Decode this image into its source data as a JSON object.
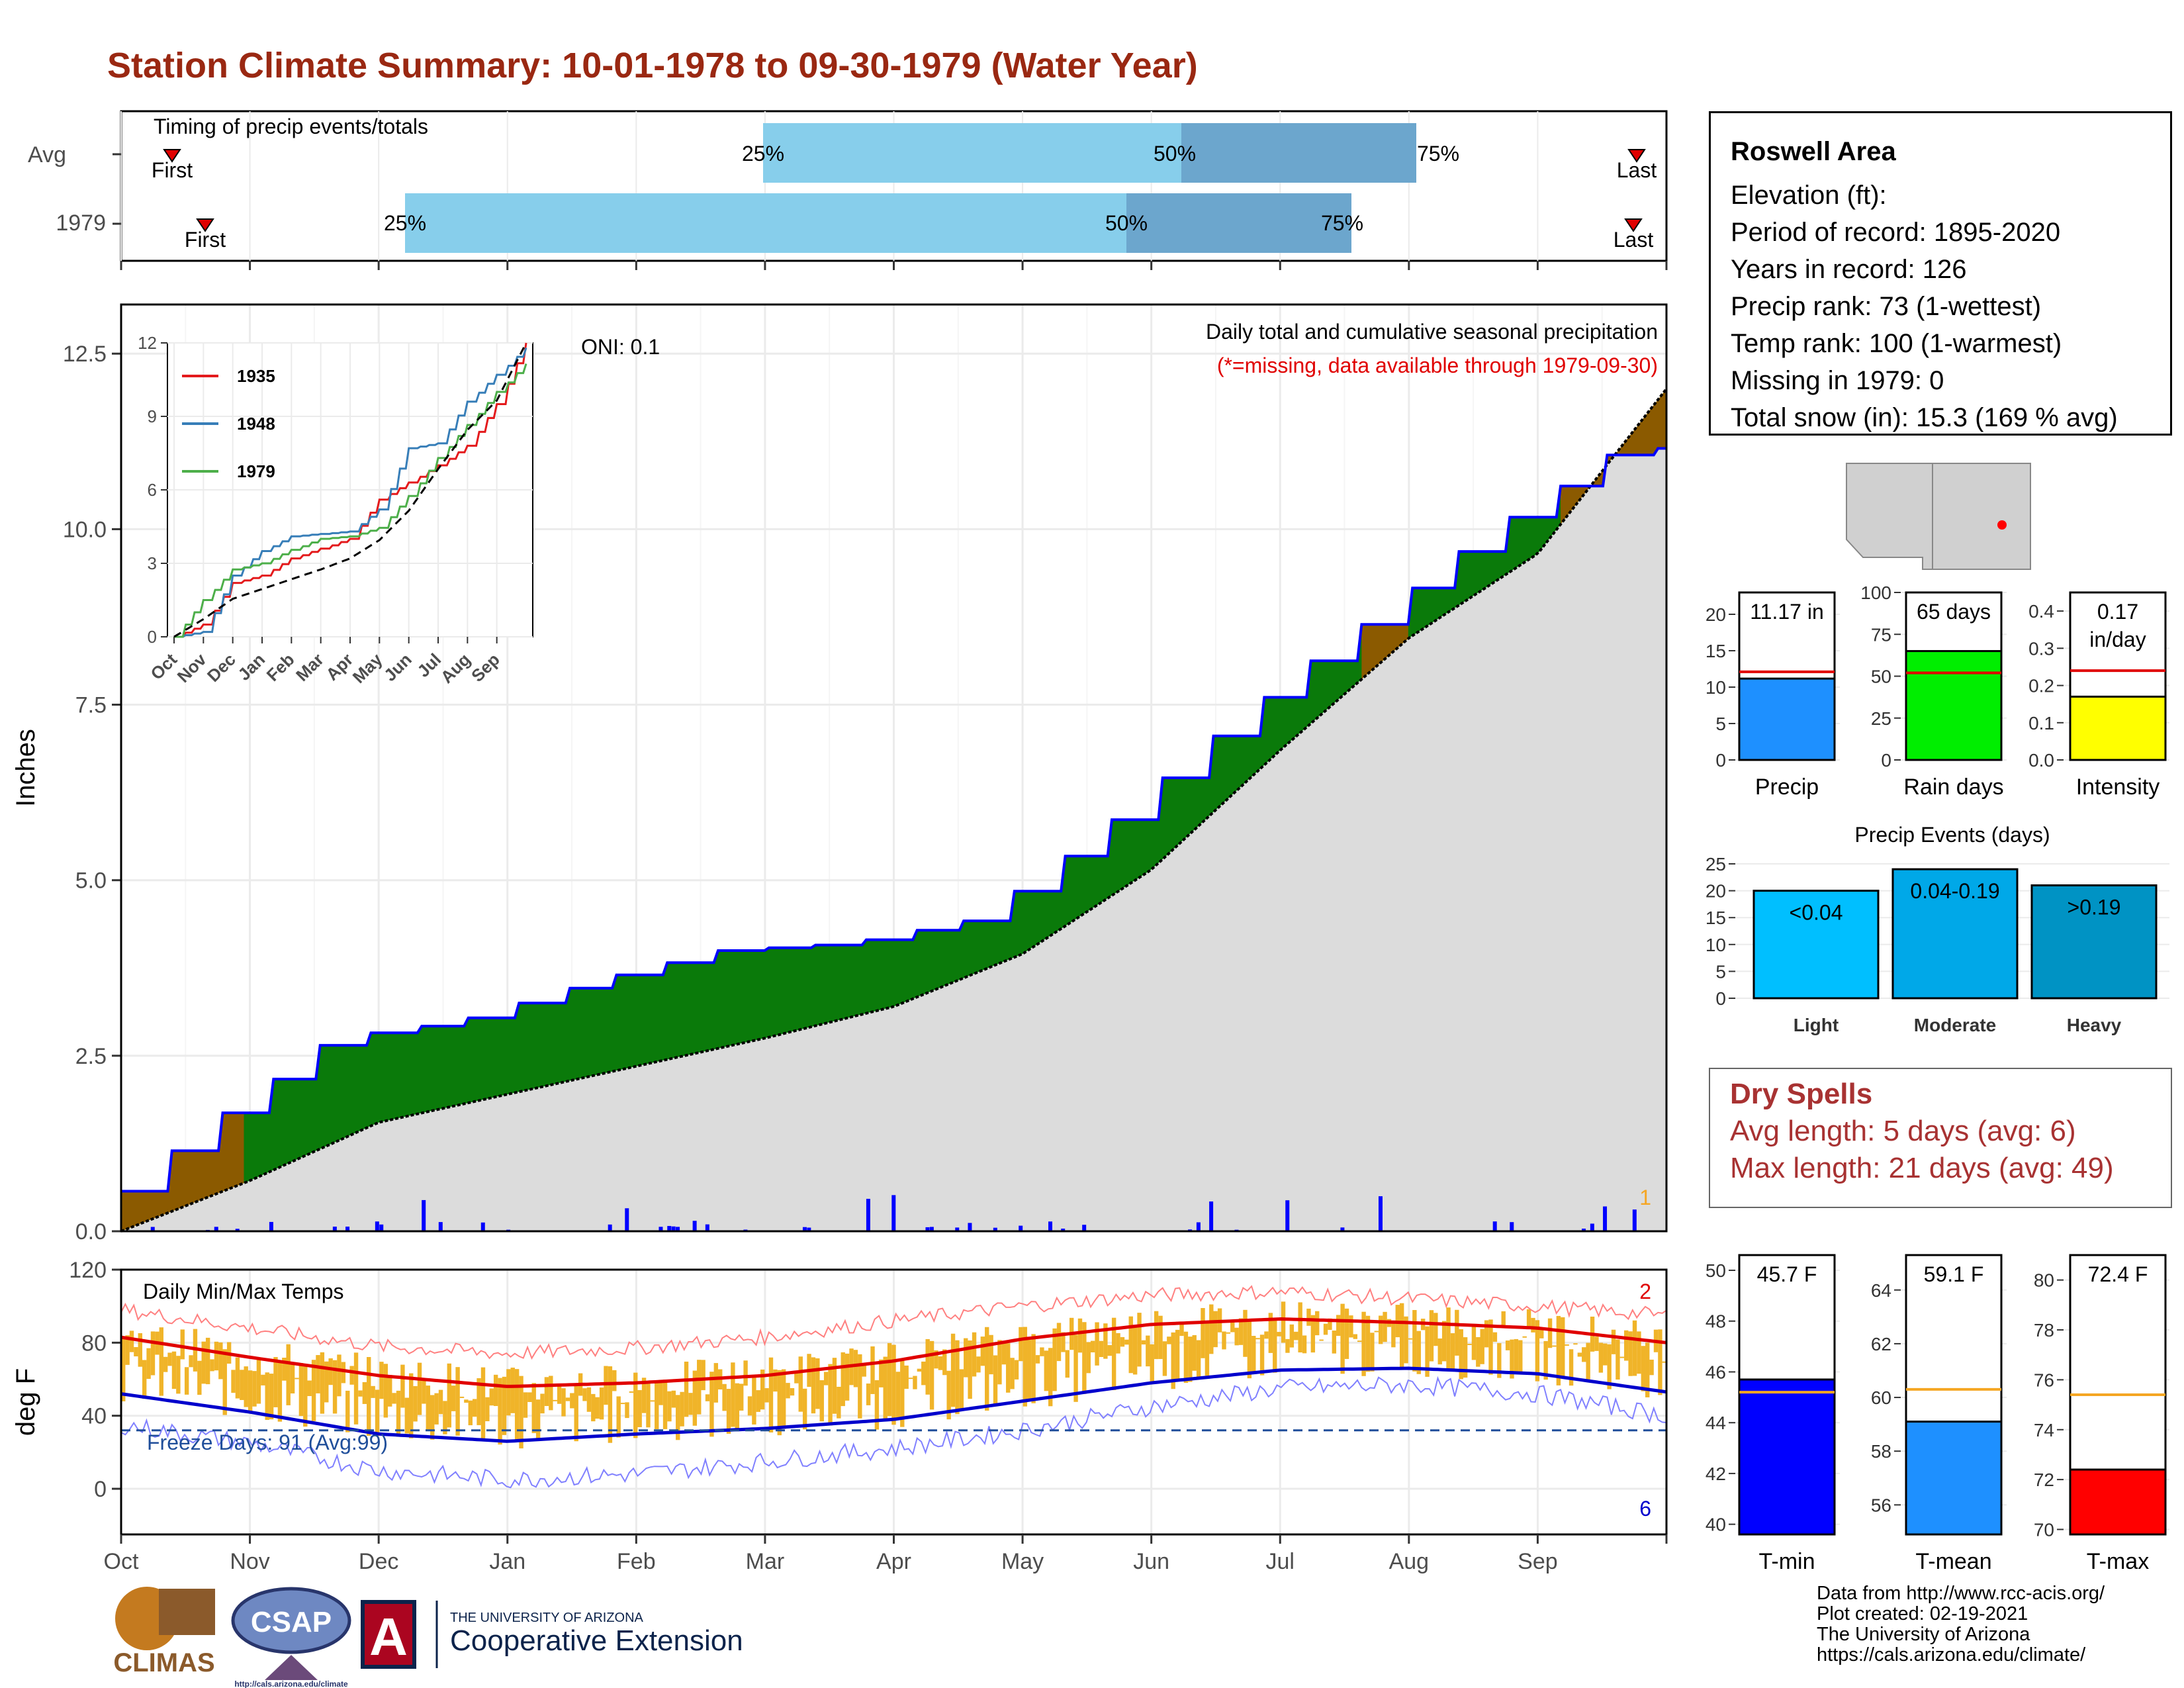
{
  "title": "Station Climate Summary: 10-01-1978 to 09-30-1979 (Water Year)",
  "timing": {
    "label": "Timing of precip events/totals",
    "rows": [
      "Avg",
      "1979"
    ],
    "pct_labels": [
      "25%",
      "50%",
      "75%"
    ],
    "first_label": "First",
    "last_label": "Last"
  },
  "main_panel": {
    "caption": "Daily total and cumulative seasonal precipitation",
    "note": "(*=missing, data available through 1979-09-30)",
    "oni": "ONI: 0.1",
    "ylabel": "Inches",
    "yticks": [
      "0.0",
      "2.5",
      "5.0",
      "7.5",
      "10.0",
      "12.5"
    ],
    "corner_count": "1"
  },
  "inset": {
    "yticks": [
      "0",
      "3",
      "6",
      "9",
      "12"
    ],
    "xticks": [
      "Oct",
      "Nov",
      "Dec",
      "Jan",
      "Feb",
      "Mar",
      "Apr",
      "May",
      "Jun",
      "Jul",
      "Aug",
      "Sep"
    ],
    "legend": [
      "1935",
      "1948",
      "1979"
    ],
    "colors": {
      "1935": "#e41a1c",
      "1948": "#377eb8",
      "1979": "#4daf4a"
    }
  },
  "temp_panel": {
    "label": "Daily Min/Max Temps",
    "ylabel": "deg F",
    "yticks": [
      "120",
      "80",
      "40",
      "0"
    ],
    "freeze": "Freeze Days: 91 (Avg:99)",
    "count_hot": "2",
    "count_cold": "6"
  },
  "x_months": [
    "Oct",
    "Nov",
    "Dec",
    "Jan",
    "Feb",
    "Mar",
    "Apr",
    "May",
    "Jun",
    "Jul",
    "Aug",
    "Sep"
  ],
  "station": {
    "name": "Roswell Area",
    "lines": [
      "Elevation (ft):",
      "Period of record: 1895-2020",
      "Years in record: 126",
      "Precip rank: 73 (1-wettest)",
      "Temp rank: 100 (1-warmest)",
      "Missing in 1979: 0",
      "Total snow (in): 15.3 (169 % avg)"
    ]
  },
  "mini_bars": {
    "precip": {
      "value_label": "11.17 in",
      "label": "Precip",
      "yticks": [
        "0",
        "5",
        "10",
        "15",
        "20"
      ]
    },
    "rain_days": {
      "value_label": "65 days",
      "label": "Rain days",
      "yticks": [
        "0",
        "25",
        "50",
        "75",
        "100"
      ]
    },
    "intensity": {
      "value_label_1": "0.17",
      "value_label_2": "in/day",
      "label": "Intensity",
      "yticks": [
        "0.0",
        "0.1",
        "0.2",
        "0.3",
        "0.4"
      ]
    }
  },
  "precip_events": {
    "title": "Precip Events (days)",
    "yticks": [
      "0",
      "5",
      "10",
      "15",
      "20",
      "25"
    ],
    "bars": [
      {
        "label": "Light",
        "range": "<0.04"
      },
      {
        "label": "Moderate",
        "range": "0.04-0.19"
      },
      {
        "label": "Heavy",
        "range": ">0.19"
      }
    ]
  },
  "dry_spells": {
    "title": "Dry Spells",
    "avg": "Avg length: 5 days (avg: 6)",
    "max": "Max length: 21 days (avg: 49)"
  },
  "temp_bars": {
    "tmin": {
      "value_label": "45.7 F",
      "label": "T-min",
      "yticks": [
        "40",
        "42",
        "44",
        "46",
        "48",
        "50"
      ]
    },
    "tmean": {
      "value_label": "59.1 F",
      "label": "T-mean",
      "yticks": [
        "56",
        "58",
        "60",
        "62",
        "64"
      ]
    },
    "tmax": {
      "value_label": "72.4 F",
      "label": "T-max",
      "yticks": [
        "70",
        "72",
        "74",
        "76",
        "78",
        "80"
      ]
    }
  },
  "footer": [
    "Data from http://www.rcc-acis.org/",
    "Plot created: 02-19-2021",
    "The University of Arizona",
    "https://cals.arizona.edu/climate/"
  ],
  "logos": {
    "climas": "CLIMAS",
    "csap": "CSAP",
    "csap_url": "http://cals.arizona.edu/climate",
    "ua_small": "THE UNIVERSITY OF ARIZONA",
    "ua_big": "Cooperative Extension"
  },
  "chart_data": [
    {
      "type": "area",
      "title": "Daily total and cumulative seasonal precipitation",
      "ylabel": "Inches",
      "ylim": [
        0,
        13.2
      ],
      "x": [
        "Oct",
        "Nov",
        "Dec",
        "Jan",
        "Feb",
        "Mar",
        "Apr",
        "May",
        "Jun",
        "Jul",
        "Aug",
        "Sep",
        "end"
      ],
      "series": [
        {
          "values": [
            0.0,
            1.5,
            2.75,
            3.0,
            3.55,
            4.0,
            4.1,
            4.45,
            5.75,
            7.3,
            8.65,
            10.0,
            11.15
          ]
        },
        {
          "values": [
            0.0,
            0.72,
            1.55,
            1.95,
            2.35,
            2.75,
            3.2,
            3.95,
            5.15,
            6.85,
            8.45,
            9.65,
            12.0
          ]
        }
      ]
    },
    {
      "type": "line",
      "ylim": [
        0,
        12
      ],
      "x": [
        "Oct",
        "Nov",
        "Dec",
        "Jan",
        "Feb",
        "Mar",
        "Apr",
        "May",
        "Jun",
        "Jul",
        "Aug",
        "Sep",
        "end"
      ],
      "series": [
        {
          "name": "1935",
          "values": [
            0,
            0.5,
            2.2,
            2.5,
            3.2,
            3.6,
            4.0,
            5.6,
            6.3,
            7.0,
            7.8,
            9.5,
            12.0
          ]
        },
        {
          "name": "1948",
          "values": [
            0,
            0.2,
            2.5,
            3.5,
            4.1,
            4.2,
            4.3,
            5.2,
            7.7,
            7.9,
            9.6,
            10.7,
            11.8
          ]
        },
        {
          "name": "1979",
          "values": [
            0,
            1.5,
            2.75,
            3.0,
            3.55,
            4.0,
            4.1,
            4.45,
            5.75,
            7.3,
            8.65,
            10.0,
            11.15
          ]
        },
        {
          "values": [
            0,
            0.72,
            1.55,
            1.95,
            2.35,
            2.75,
            3.2,
            3.95,
            5.15,
            6.85,
            8.45,
            9.65,
            12.0
          ]
        }
      ]
    },
    {
      "type": "line",
      "title": "Daily Min/Max Temps",
      "ylabel": "deg F",
      "ylim": [
        -25,
        120
      ],
      "x": [
        "Oct",
        "Nov",
        "Dec",
        "Jan",
        "Feb",
        "Mar",
        "Apr",
        "May",
        "Jun",
        "Jul",
        "Aug",
        "Sep",
        "end"
      ],
      "series": [
        {
          "values": [
            83,
            72,
            62,
            56,
            58,
            62,
            70,
            82,
            90,
            93,
            91,
            88,
            80
          ]
        },
        {
          "values": [
            52,
            42,
            30,
            26,
            30,
            33,
            38,
            48,
            58,
            65,
            66,
            63,
            53
          ]
        },
        {
          "values": [
            98,
            88,
            78,
            74,
            77,
            83,
            92,
            100,
            106,
            108,
            104,
            100,
            95
          ]
        },
        {
          "values": [
            35,
            25,
            10,
            5,
            8,
            15,
            22,
            32,
            45,
            55,
            57,
            52,
            40
          ]
        }
      ],
      "freeze_line": 32
    },
    {
      "type": "bar",
      "categories": [
        "Precip"
      ],
      "values": [
        11.17
      ],
      "ylim": [
        0,
        23
      ],
      "reference": 12.1
    },
    {
      "type": "bar",
      "categories": [
        "Rain days"
      ],
      "values": [
        65
      ],
      "ylim": [
        0,
        100
      ],
      "reference": 52
    },
    {
      "type": "bar",
      "categories": [
        "Intensity"
      ],
      "values": [
        0.17
      ],
      "ylim": [
        0,
        0.45
      ],
      "reference": 0.24
    },
    {
      "type": "bar",
      "title": "Precip Events (days)",
      "categories": [
        "Light",
        "Moderate",
        "Heavy"
      ],
      "values": [
        20,
        24,
        21
      ],
      "ylim": [
        0,
        25
      ]
    },
    {
      "type": "bar",
      "categories": [
        "T-min"
      ],
      "values": [
        45.7
      ],
      "ylim": [
        39.6,
        50.6
      ],
      "reference": 45.2
    },
    {
      "type": "bar",
      "categories": [
        "T-mean"
      ],
      "values": [
        59.1
      ],
      "ylim": [
        54.9,
        65.3
      ],
      "reference": 60.3
    },
    {
      "type": "bar",
      "categories": [
        "T-max"
      ],
      "values": [
        72.4
      ],
      "ylim": [
        69.8,
        81.0
      ],
      "reference": 75.4
    }
  ]
}
